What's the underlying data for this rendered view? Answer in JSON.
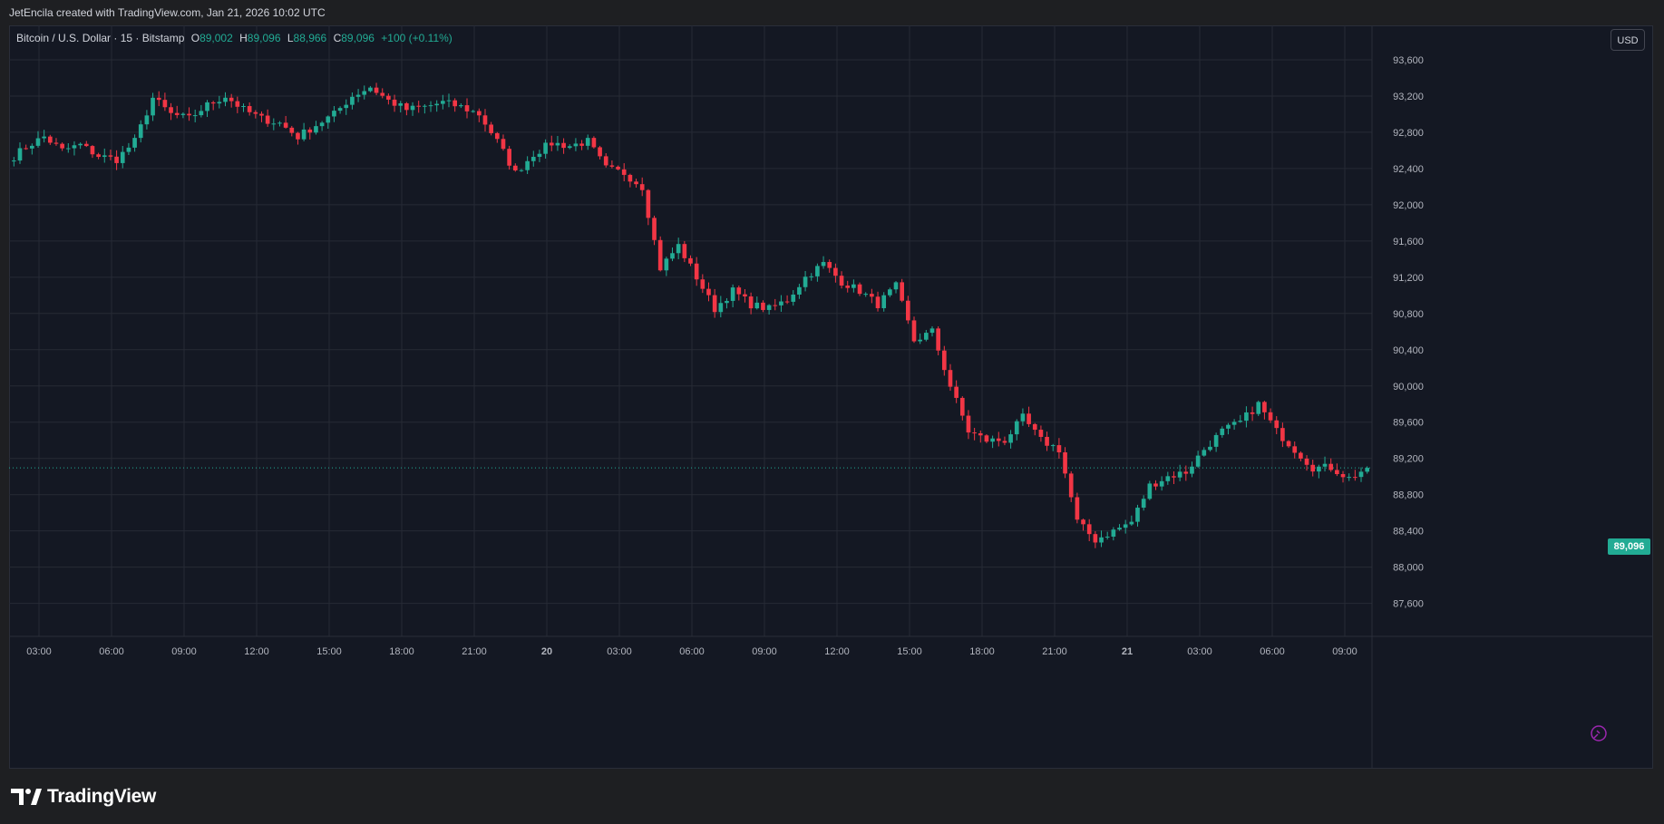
{
  "header": {
    "attribution": "JetEncila created with TradingView.com, Jan 21, 2026 10:02 UTC"
  },
  "legend": {
    "symbol": "Bitcoin / U.S. Dollar · 15 · Bitstamp",
    "open_label": "O",
    "open_value": "89,002",
    "high_label": "H",
    "high_value": "89,096",
    "low_label": "L",
    "low_value": "88,966",
    "close_label": "C",
    "close_value": "89,096",
    "change": "+100 (+0.11%)"
  },
  "currency_button": "USD",
  "last_price_label": "89,096",
  "footer": {
    "brand": "TradingView",
    "logo_icon": "tradingview-logo-icon"
  },
  "colors": {
    "up": "#22ab94",
    "down": "#f23645",
    "background": "#141823",
    "grid": "#262a35"
  },
  "chart_data": {
    "type": "candlestick",
    "x_tick_labels": [
      "03:00",
      "06:00",
      "09:00",
      "12:00",
      "15:00",
      "18:00",
      "21:00",
      "20",
      "03:00",
      "06:00",
      "09:00",
      "12:00",
      "15:00",
      "18:00",
      "21:00",
      "21",
      "03:00",
      "06:00",
      "09:00"
    ],
    "y_tick_labels": [
      "87,600",
      "88,000",
      "88,400",
      "88,800",
      "89,200",
      "89,600",
      "90,000",
      "90,400",
      "90,800",
      "91,200",
      "91,600",
      "92,000",
      "92,400",
      "92,800",
      "93,200",
      "93,600"
    ],
    "y_ticks": [
      87600,
      88000,
      88400,
      88800,
      89200,
      89600,
      90000,
      90400,
      90800,
      91200,
      91600,
      92000,
      92400,
      92800,
      93200,
      93600
    ],
    "ylim": [
      87236,
      93980
    ],
    "last_price": 89096,
    "interval_minutes": 15,
    "time_range": "Jan 19 ~02:00 UTC to Jan 21 10:00 UTC",
    "anchors": [
      92480,
      92640,
      92750,
      92600,
      92660,
      92540,
      92500,
      92700,
      93180,
      93000,
      92950,
      93100,
      93200,
      93050,
      92950,
      92900,
      92750,
      92880,
      93000,
      93200,
      93300,
      93150,
      93050,
      93080,
      93130,
      93080,
      93000,
      92700,
      92350,
      92560,
      92680,
      92650,
      92700,
      92400,
      92350,
      92200,
      91300,
      91550,
      91200,
      90850,
      91050,
      90900,
      90850,
      90950,
      91200,
      91350,
      91150,
      91050,
      90900,
      91100,
      90500,
      90600,
      90000,
      89500,
      89400,
      89400,
      89650,
      89400,
      89300,
      88500,
      88300,
      88400,
      88500,
      88900,
      89000,
      89050,
      89300,
      89500,
      89600,
      89800,
      89500,
      89300,
      89100,
      89100,
      88980,
      89096
    ]
  }
}
